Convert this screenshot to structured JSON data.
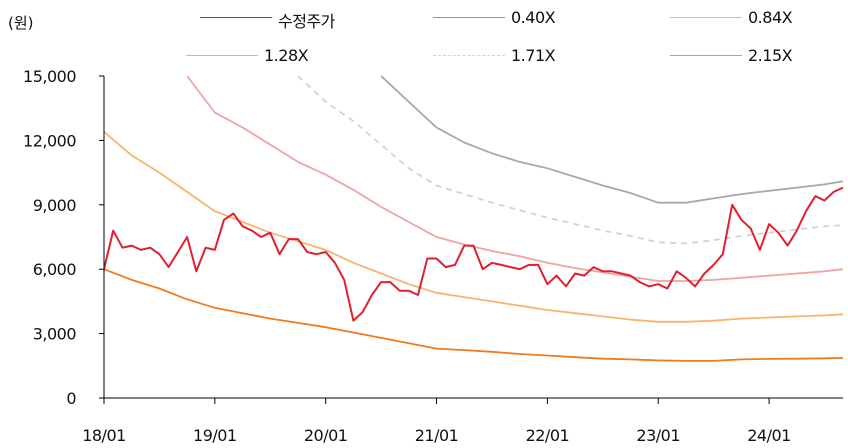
{
  "chart_data": {
    "type": "line",
    "unit_label": "(원)",
    "xlabel": "",
    "ylabel": "",
    "ylim": [
      0,
      15000
    ],
    "yticks": [
      0,
      3000,
      6000,
      9000,
      12000,
      15000
    ],
    "ytick_labels": [
      "0",
      "3,000",
      "6,000",
      "9,000",
      "12,000",
      "15,000"
    ],
    "xlim": [
      2018.0,
      2024.667
    ],
    "xticks": [
      2018,
      2019,
      2020,
      2021,
      2022,
      2023,
      2024
    ],
    "xtick_labels": [
      "18/01",
      "19/01",
      "20/01",
      "21/01",
      "22/01",
      "23/01",
      "24/01"
    ],
    "grid": false,
    "legend_placement": "top",
    "series": [
      {
        "name": "수정주가",
        "color": "#e0202e",
        "dash": "solid",
        "x": [
          2018.0,
          2018.083,
          2018.167,
          2018.25,
          2018.333,
          2018.417,
          2018.5,
          2018.583,
          2018.667,
          2018.75,
          2018.833,
          2018.917,
          2019.0,
          2019.083,
          2019.167,
          2019.25,
          2019.333,
          2019.417,
          2019.5,
          2019.583,
          2019.667,
          2019.75,
          2019.833,
          2019.917,
          2020.0,
          2020.083,
          2020.167,
          2020.25,
          2020.333,
          2020.417,
          2020.5,
          2020.583,
          2020.667,
          2020.75,
          2020.833,
          2020.917,
          2021.0,
          2021.083,
          2021.167,
          2021.25,
          2021.333,
          2021.417,
          2021.5,
          2021.583,
          2021.667,
          2021.75,
          2021.833,
          2021.917,
          2022.0,
          2022.083,
          2022.167,
          2022.25,
          2022.333,
          2022.417,
          2022.5,
          2022.583,
          2022.667,
          2022.75,
          2022.833,
          2022.917,
          2023.0,
          2023.083,
          2023.167,
          2023.25,
          2023.333,
          2023.417,
          2023.5,
          2023.583,
          2023.667,
          2023.75,
          2023.833,
          2023.917,
          2024.0,
          2024.083,
          2024.167,
          2024.25,
          2024.333,
          2024.417,
          2024.5,
          2024.583,
          2024.667
        ],
        "values": [
          6000,
          7800,
          7000,
          7100,
          6900,
          7000,
          6700,
          6100,
          6800,
          7500,
          5900,
          7000,
          6900,
          8300,
          8600,
          8000,
          7800,
          7500,
          7700,
          6700,
          7400,
          7400,
          6800,
          6700,
          6800,
          6300,
          5500,
          3600,
          4000,
          4800,
          5400,
          5400,
          5000,
          5000,
          4800,
          6500,
          6500,
          6100,
          6200,
          7100,
          7100,
          6000,
          6300,
          6200,
          6100,
          6000,
          6200,
          6200,
          5300,
          5700,
          5200,
          5800,
          5700,
          6100,
          5900,
          5900,
          5800,
          5700,
          5400,
          5200,
          5300,
          5100,
          5900,
          5600,
          5200,
          5800,
          6200,
          6700,
          9000,
          8300,
          7900,
          6900,
          8100,
          7700,
          7100,
          7800,
          8700,
          9400,
          9200,
          9600,
          9800
        ]
      },
      {
        "name": "0.40X",
        "color": "#f07a1c",
        "dash": "solid",
        "x": [
          2018.0,
          2018.25,
          2018.5,
          2018.75,
          2019.0,
          2019.25,
          2019.5,
          2019.75,
          2020.0,
          2020.25,
          2020.5,
          2020.75,
          2021.0,
          2021.25,
          2021.5,
          2021.75,
          2022.0,
          2022.25,
          2022.5,
          2022.75,
          2023.0,
          2023.25,
          2023.5,
          2023.75,
          2024.0,
          2024.25,
          2024.5,
          2024.667
        ],
        "values": [
          6000,
          5500,
          5100,
          4600,
          4200,
          3950,
          3700,
          3500,
          3300,
          3050,
          2800,
          2550,
          2300,
          2230,
          2150,
          2050,
          1980,
          1900,
          1830,
          1800,
          1750,
          1730,
          1730,
          1800,
          1820,
          1830,
          1850,
          1870
        ]
      },
      {
        "name": "0.84X",
        "color": "#f7b46e",
        "dash": "solid",
        "x": [
          2018.0,
          2018.25,
          2018.5,
          2018.75,
          2019.0,
          2019.25,
          2019.5,
          2019.75,
          2020.0,
          2020.25,
          2020.5,
          2020.75,
          2021.0,
          2021.25,
          2021.5,
          2021.75,
          2022.0,
          2022.25,
          2022.5,
          2022.75,
          2023.0,
          2023.25,
          2023.5,
          2023.75,
          2024.0,
          2024.25,
          2024.5,
          2024.667
        ],
        "values": [
          12400,
          11300,
          10500,
          9600,
          8700,
          8200,
          7700,
          7300,
          6900,
          6300,
          5800,
          5300,
          4900,
          4700,
          4500,
          4300,
          4100,
          3950,
          3800,
          3650,
          3550,
          3550,
          3600,
          3700,
          3750,
          3800,
          3850,
          3900
        ]
      },
      {
        "name": "1.28X",
        "color": "#f0a3a3",
        "dash": "solid",
        "x": [
          2018.75,
          2019.0,
          2019.25,
          2019.5,
          2019.75,
          2020.0,
          2020.25,
          2020.5,
          2020.75,
          2021.0,
          2021.25,
          2021.5,
          2021.75,
          2022.0,
          2022.25,
          2022.5,
          2022.75,
          2023.0,
          2023.25,
          2023.5,
          2023.75,
          2024.0,
          2024.25,
          2024.5,
          2024.667
        ],
        "values": [
          15000,
          13300,
          12600,
          11800,
          11000,
          10400,
          9700,
          8900,
          8200,
          7500,
          7150,
          6850,
          6600,
          6300,
          6050,
          5850,
          5650,
          5450,
          5450,
          5500,
          5600,
          5700,
          5800,
          5900,
          6000
        ]
      },
      {
        "name": "1.71X",
        "color": "#d3d3d3",
        "dash": "dashed",
        "x": [
          2019.75,
          2020.0,
          2020.25,
          2020.5,
          2020.75,
          2021.0,
          2021.25,
          2021.5,
          2021.75,
          2022.0,
          2022.25,
          2022.5,
          2022.75,
          2023.0,
          2023.25,
          2023.5,
          2023.75,
          2024.0,
          2024.25,
          2024.5,
          2024.667
        ],
        "values": [
          15000,
          13800,
          12900,
          11800,
          10700,
          9900,
          9500,
          9100,
          8750,
          8400,
          8100,
          7800,
          7550,
          7250,
          7200,
          7350,
          7550,
          7700,
          7850,
          8000,
          8050
        ]
      },
      {
        "name": "2.15X",
        "color": "#a8a8a8",
        "dash": "solid",
        "x": [
          2020.5,
          2020.75,
          2021.0,
          2021.25,
          2021.5,
          2021.75,
          2022.0,
          2022.25,
          2022.5,
          2022.75,
          2023.0,
          2023.25,
          2023.5,
          2023.75,
          2024.0,
          2024.25,
          2024.5,
          2024.667
        ],
        "values": [
          15000,
          13800,
          12600,
          11900,
          11400,
          11000,
          10700,
          10300,
          9900,
          9550,
          9100,
          9100,
          9300,
          9500,
          9650,
          9800,
          9950,
          10100
        ]
      }
    ]
  }
}
